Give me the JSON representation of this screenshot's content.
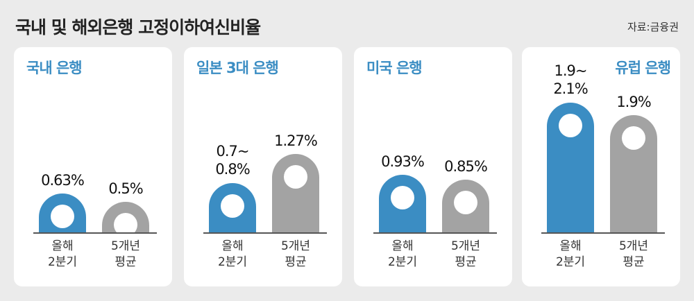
{
  "title": "국내 및 해외은행 고정이하여신비율",
  "source": "자료:금융권",
  "chart_data": [
    {
      "type": "bar",
      "title": "국내 은행",
      "categories": [
        "올해\n2분기",
        "5개년\n평균"
      ],
      "values": [
        0.63,
        0.5
      ],
      "value_labels": [
        "0.63%",
        "0.5%"
      ],
      "colors": [
        "#3b8dc3",
        "#a3a3a3"
      ],
      "ylim": [
        0,
        3
      ]
    },
    {
      "type": "bar",
      "title": "일본 3대 은행",
      "categories": [
        "올해\n2분기",
        "5개년\n평균"
      ],
      "values": [
        0.8,
        1.27
      ],
      "value_labels": [
        "0.7~\n0.8%",
        "1.27%"
      ],
      "colors": [
        "#3b8dc3",
        "#a3a3a3"
      ],
      "ylim": [
        0,
        3
      ]
    },
    {
      "type": "bar",
      "title": "미국 은행",
      "categories": [
        "올해\n2분기",
        "5개년\n평균"
      ],
      "values": [
        0.93,
        0.85
      ],
      "value_labels": [
        "0.93%",
        "0.85%"
      ],
      "colors": [
        "#3b8dc3",
        "#a3a3a3"
      ],
      "ylim": [
        0,
        3
      ]
    },
    {
      "type": "bar",
      "title": "유럽 은행",
      "categories": [
        "올해\n2분기",
        "5개년\n평균"
      ],
      "values": [
        2.1,
        1.9
      ],
      "value_labels": [
        "1.9~\n2.1%",
        "1.9%"
      ],
      "colors": [
        "#3b8dc3",
        "#a3a3a3"
      ],
      "ylim": [
        0,
        3
      ]
    }
  ]
}
